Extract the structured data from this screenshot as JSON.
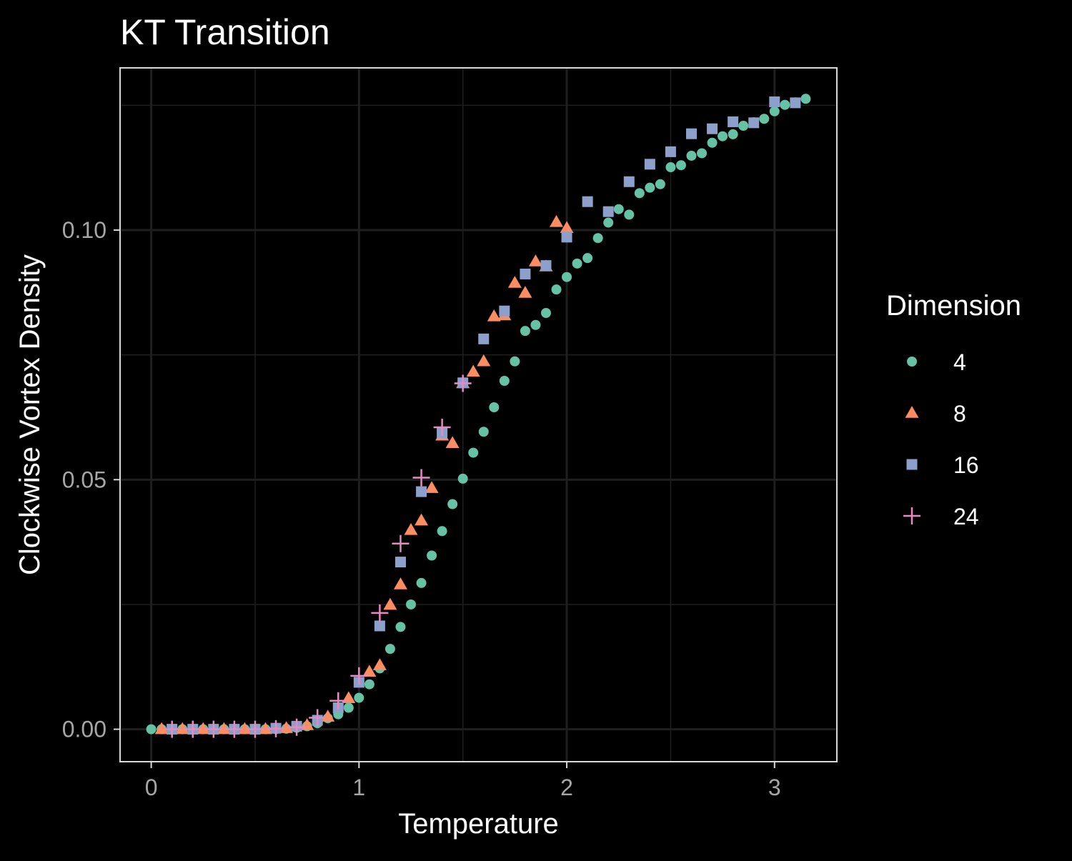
{
  "chart_data": {
    "type": "scatter",
    "title": "KT Transition",
    "xlabel": "Temperature",
    "ylabel": "Clockwise Vortex Density",
    "xlim": [
      -0.15,
      3.3
    ],
    "ylim": [
      -0.0065,
      0.1325
    ],
    "x_ticks": [
      0,
      1,
      2,
      3
    ],
    "x_tick_labels": [
      "0",
      "1",
      "2",
      "3"
    ],
    "y_ticks": [
      0.0,
      0.05,
      0.1
    ],
    "y_tick_labels": [
      "0.00",
      "0.05",
      "0.10"
    ],
    "grid": true,
    "background": "#000000",
    "panel_border_color": "#d9d9d9",
    "grid_color": "#1f1f1f",
    "legend": {
      "title": "Dimension",
      "position": "right"
    },
    "series": [
      {
        "name": "4",
        "shape": "circle",
        "color": "#66c2a5",
        "points": [
          [
            0.0,
            0.0
          ],
          [
            0.05,
            0.0
          ],
          [
            0.1,
            0.0
          ],
          [
            0.15,
            0.0
          ],
          [
            0.2,
            0.0
          ],
          [
            0.25,
            0.0
          ],
          [
            0.3,
            0.0
          ],
          [
            0.35,
            0.0
          ],
          [
            0.4,
            0.0
          ],
          [
            0.45,
            0.0
          ],
          [
            0.5,
            0.0
          ],
          [
            0.55,
            0.0
          ],
          [
            0.6,
            0.0
          ],
          [
            0.65,
            0.0001
          ],
          [
            0.7,
            0.0003
          ],
          [
            0.75,
            0.0006
          ],
          [
            0.8,
            0.0012
          ],
          [
            0.85,
            0.0022
          ],
          [
            0.9,
            0.003
          ],
          [
            0.95,
            0.0043
          ],
          [
            1.0,
            0.0063
          ],
          [
            1.05,
            0.009
          ],
          [
            1.1,
            0.0122
          ],
          [
            1.15,
            0.0161
          ],
          [
            1.2,
            0.0205
          ],
          [
            1.25,
            0.025
          ],
          [
            1.3,
            0.0293
          ],
          [
            1.35,
            0.0348
          ],
          [
            1.4,
            0.0397
          ],
          [
            1.45,
            0.0451
          ],
          [
            1.5,
            0.0502
          ],
          [
            1.55,
            0.0554
          ],
          [
            1.6,
            0.0596
          ],
          [
            1.65,
            0.0645
          ],
          [
            1.7,
            0.0698
          ],
          [
            1.75,
            0.0737
          ],
          [
            1.8,
            0.0798
          ],
          [
            1.85,
            0.081
          ],
          [
            1.9,
            0.0834
          ],
          [
            1.95,
            0.0881
          ],
          [
            2.0,
            0.0906
          ],
          [
            2.05,
            0.0933
          ],
          [
            2.1,
            0.0944
          ],
          [
            2.15,
            0.0984
          ],
          [
            2.2,
            0.1015
          ],
          [
            2.25,
            0.1042
          ],
          [
            2.3,
            0.1031
          ],
          [
            2.35,
            0.1074
          ],
          [
            2.4,
            0.1085
          ],
          [
            2.45,
            0.1092
          ],
          [
            2.5,
            0.1126
          ],
          [
            2.55,
            0.113
          ],
          [
            2.6,
            0.1149
          ],
          [
            2.65,
            0.1154
          ],
          [
            2.7,
            0.1175
          ],
          [
            2.75,
            0.1188
          ],
          [
            2.8,
            0.1192
          ],
          [
            2.85,
            0.1209
          ],
          [
            2.9,
            0.1216
          ],
          [
            2.95,
            0.1223
          ],
          [
            3.0,
            0.1238
          ],
          [
            3.05,
            0.1251
          ],
          [
            3.1,
            0.1256
          ],
          [
            3.15,
            0.1263
          ]
        ]
      },
      {
        "name": "8",
        "shape": "triangle",
        "color": "#fc8d62",
        "points": [
          [
            0.05,
            0.0
          ],
          [
            0.15,
            0.0
          ],
          [
            0.25,
            0.0
          ],
          [
            0.35,
            0.0
          ],
          [
            0.45,
            0.0
          ],
          [
            0.55,
            0.0
          ],
          [
            0.65,
            0.0002
          ],
          [
            0.75,
            0.0008
          ],
          [
            0.85,
            0.0025
          ],
          [
            0.95,
            0.0062
          ],
          [
            1.05,
            0.0115
          ],
          [
            1.1,
            0.0128
          ],
          [
            1.15,
            0.0249
          ],
          [
            1.2,
            0.029
          ],
          [
            1.25,
            0.0399
          ],
          [
            1.3,
            0.0418
          ],
          [
            1.35,
            0.0483
          ],
          [
            1.4,
            0.0588
          ],
          [
            1.45,
            0.0573
          ],
          [
            1.5,
            0.0693
          ],
          [
            1.55,
            0.0716
          ],
          [
            1.6,
            0.0737
          ],
          [
            1.65,
            0.0827
          ],
          [
            1.7,
            0.0829
          ],
          [
            1.75,
            0.0894
          ],
          [
            1.8,
            0.0874
          ],
          [
            1.85,
            0.0937
          ],
          [
            1.9,
            0.0927
          ],
          [
            1.95,
            0.1016
          ],
          [
            2.0,
            0.1004
          ]
        ]
      },
      {
        "name": "16",
        "shape": "square",
        "color": "#8da0cb",
        "points": [
          [
            0.1,
            0.0
          ],
          [
            0.2,
            0.0
          ],
          [
            0.3,
            0.0
          ],
          [
            0.4,
            0.0
          ],
          [
            0.5,
            0.0
          ],
          [
            0.6,
            0.0002
          ],
          [
            0.7,
            0.0006
          ],
          [
            0.8,
            0.0018
          ],
          [
            0.9,
            0.0043
          ],
          [
            1.0,
            0.0094
          ],
          [
            1.1,
            0.0207
          ],
          [
            1.2,
            0.0335
          ],
          [
            1.3,
            0.0476
          ],
          [
            1.4,
            0.0594
          ],
          [
            1.5,
            0.0694
          ],
          [
            1.6,
            0.0782
          ],
          [
            1.7,
            0.0838
          ],
          [
            1.8,
            0.0912
          ],
          [
            1.9,
            0.0929
          ],
          [
            2.0,
            0.0986
          ],
          [
            2.1,
            0.1057
          ],
          [
            2.2,
            0.1037
          ],
          [
            2.3,
            0.1097
          ],
          [
            2.4,
            0.1132
          ],
          [
            2.5,
            0.1157
          ],
          [
            2.6,
            0.1193
          ],
          [
            2.7,
            0.1203
          ],
          [
            2.8,
            0.1217
          ],
          [
            2.9,
            0.1215
          ],
          [
            3.0,
            0.1257
          ],
          [
            3.1,
            0.1255
          ]
        ]
      },
      {
        "name": "24",
        "shape": "cross",
        "color": "#e78ac3",
        "points": [
          [
            0.1,
            0.0
          ],
          [
            0.2,
            0.0
          ],
          [
            0.3,
            0.0
          ],
          [
            0.4,
            0.0
          ],
          [
            0.5,
            0.0
          ],
          [
            0.6,
            0.0001
          ],
          [
            0.7,
            0.0004
          ],
          [
            0.8,
            0.0023
          ],
          [
            0.9,
            0.0057
          ],
          [
            1.0,
            0.0107
          ],
          [
            1.1,
            0.0233
          ],
          [
            1.2,
            0.0372
          ],
          [
            1.3,
            0.0504
          ],
          [
            1.4,
            0.0605
          ],
          [
            1.5,
            0.0693
          ]
        ]
      }
    ]
  }
}
